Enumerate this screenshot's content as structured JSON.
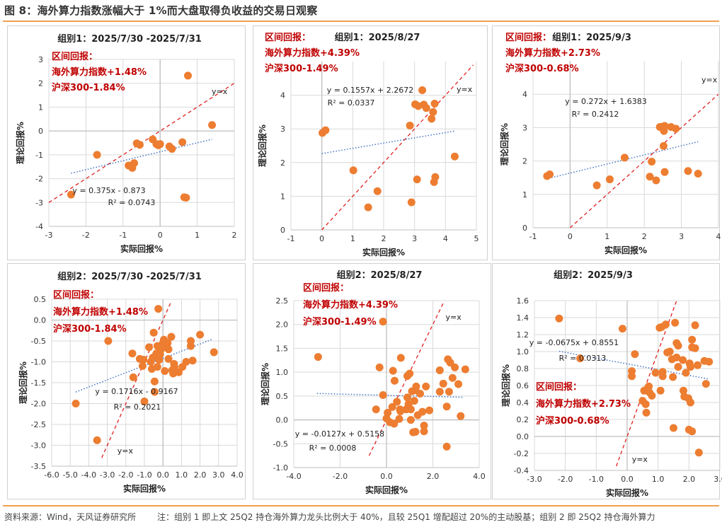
{
  "figure": {
    "title": "图 8：海外算力指数涨幅大于 1%而大盘取得负收益的交易日观察",
    "source": "资料来源：Wind，天风证券研究所",
    "note": "注：组别 1 即上文 25Q2 持仓海外算力龙头比例大于 40%，且较 25Q1 增配超过 20%的主动股基；组别 2 即 25Q2 持仓海外算力"
  },
  "colors": {
    "point": "#ed7d31",
    "diag": "#e02020",
    "trend": "#4472c4",
    "annot": "#c00000",
    "grid": "#d9d9d9",
    "axis": "#bfbfbf"
  },
  "chart_data": [
    {
      "type": "scatter",
      "title": "组别1：2025/7/30 -2025/7/31",
      "xlabel": "实际回报%",
      "ylabel": "理论回报%",
      "xlim": [
        -3,
        2
      ],
      "ylim": [
        -4,
        3
      ],
      "xticks": [
        -3,
        -2,
        -1,
        0,
        1,
        2
      ],
      "yticks": [
        -4,
        -3,
        -2,
        -1,
        0,
        1,
        2,
        3
      ],
      "tick_decimals": 0,
      "annotation": [
        "区间回报：",
        "海外算力指数+1.48%",
        "沪深300-1.84%"
      ],
      "trendline": {
        "equation": "y = 0.375x - 0.873",
        "r2": "R² = 0.0743",
        "slope": 0.375,
        "intercept": -0.873,
        "x_range": [
          -2.4,
          1.4
        ]
      },
      "diagonal_label": "y=x",
      "diagonal_range": [
        -3,
        2
      ],
      "points": [
        [
          -2.4,
          -2.67
        ],
        [
          -1.7,
          -1.0
        ],
        [
          -0.85,
          -1.45
        ],
        [
          -0.75,
          -1.55
        ],
        [
          -0.7,
          -1.35
        ],
        [
          -0.63,
          -0.52
        ],
        [
          -0.55,
          -0.58
        ],
        [
          -0.2,
          -0.35
        ],
        [
          -0.1,
          -0.55
        ],
        [
          -0.05,
          -0.6
        ],
        [
          0.0,
          -0.55
        ],
        [
          0.25,
          -0.65
        ],
        [
          0.32,
          -0.75
        ],
        [
          0.6,
          -0.47
        ],
        [
          0.65,
          -2.78
        ],
        [
          0.7,
          -2.8
        ],
        [
          0.75,
          2.32
        ],
        [
          1.4,
          0.25
        ]
      ]
    },
    {
      "type": "scatter",
      "title": "组别1：2025/8/27",
      "xlabel": "实际回报%",
      "ylabel": "理论回报%",
      "xlim": [
        -1,
        5
      ],
      "ylim": [
        0,
        5
      ],
      "xticks": [
        -1,
        0,
        1,
        2,
        3,
        4,
        5
      ],
      "yticks": [
        0,
        1,
        2,
        3,
        4
      ],
      "tick_decimals": 0,
      "annotation": [
        "区间回报：",
        "海外算力指数+4.39%",
        "沪深300-1.49%"
      ],
      "trendline": {
        "equation": "y = 0.1557x + 2.2672",
        "r2": "R² = 0.0337",
        "slope": 0.1557,
        "intercept": 2.2672,
        "x_range": [
          0.0,
          4.3
        ]
      },
      "diagonal_label": "y=x",
      "diagonal_range": [
        0,
        4.9
      ],
      "points": [
        [
          0.02,
          2.88
        ],
        [
          0.12,
          2.96
        ],
        [
          1.02,
          1.77
        ],
        [
          1.5,
          0.67
        ],
        [
          1.8,
          1.15
        ],
        [
          2.85,
          3.1
        ],
        [
          2.9,
          0.82
        ],
        [
          3.02,
          3.73
        ],
        [
          3.08,
          1.5
        ],
        [
          3.12,
          3.68
        ],
        [
          3.25,
          4.15
        ],
        [
          3.3,
          3.72
        ],
        [
          3.38,
          3.62
        ],
        [
          3.55,
          3.3
        ],
        [
          3.6,
          3.5
        ],
        [
          3.63,
          1.42
        ],
        [
          3.65,
          3.75
        ],
        [
          3.67,
          1.57
        ],
        [
          4.3,
          2.18
        ]
      ]
    },
    {
      "type": "scatter",
      "title": "组别1：2025/9/3",
      "xlabel": "实际回报%",
      "ylabel": "理论回报%",
      "xlim": [
        -1,
        4
      ],
      "ylim": [
        0,
        5
      ],
      "xticks": [
        -1,
        0,
        1,
        2,
        3,
        4
      ],
      "yticks": [
        0,
        1,
        2,
        3,
        4
      ],
      "tick_decimals": 0,
      "annotation": [
        "区间回报：",
        "海外算力指数+2.73%",
        "沪深300-0.68%"
      ],
      "trendline": {
        "equation": "y = 0.272x + 1.6383",
        "r2": "R² = 0.2412",
        "slope": 0.272,
        "intercept": 1.6383,
        "x_range": [
          -0.65,
          3.45
        ]
      },
      "diagonal_label": "y=x",
      "diagonal_range": [
        0,
        4
      ],
      "points": [
        [
          -0.62,
          1.55
        ],
        [
          -0.55,
          1.6
        ],
        [
          0.72,
          1.27
        ],
        [
          1.07,
          1.45
        ],
        [
          1.47,
          2.1
        ],
        [
          2.15,
          1.53
        ],
        [
          2.2,
          1.98
        ],
        [
          2.32,
          1.42
        ],
        [
          2.42,
          3.02
        ],
        [
          2.5,
          3.03
        ],
        [
          2.52,
          2.45
        ],
        [
          2.53,
          2.9
        ],
        [
          2.55,
          3.05
        ],
        [
          2.55,
          1.67
        ],
        [
          2.72,
          3.02
        ],
        [
          2.85,
          2.97
        ],
        [
          3.18,
          1.7
        ],
        [
          3.45,
          1.62
        ]
      ]
    },
    {
      "type": "scatter",
      "title": "组别2：2025/7/30 -2025/7/31",
      "xlabel": "实际回报%",
      "ylabel": "理论回报%",
      "xlim": [
        -6,
        4
      ],
      "ylim": [
        -3.5,
        0.5
      ],
      "xticks": [
        -6,
        -5,
        -4,
        -3,
        -2,
        -1,
        0,
        1,
        2,
        3,
        4
      ],
      "yticks": [
        -3.5,
        -3.0,
        -2.5,
        -2.0,
        -1.5,
        -1.0,
        -0.5,
        0.0,
        0.5
      ],
      "tick_decimals": 1,
      "annotation": [
        "区间回报：",
        "海外算力指数+1.48%",
        "沪深300-1.84%"
      ],
      "trendline": {
        "equation": "y = 0.1716x - 0.9167",
        "r2": "R² = 0.2021",
        "slope": 0.1716,
        "intercept": -0.9167,
        "x_range": [
          -4.7,
          2.7
        ]
      },
      "diagonal_label": "y=x",
      "diagonal_range": [
        -3.3,
        0.45
      ],
      "points": [
        [
          -4.7,
          -2.0
        ],
        [
          -3.55,
          -2.88
        ],
        [
          -2.95,
          -0.5
        ],
        [
          -1.65,
          -0.8
        ],
        [
          -1.6,
          -1.37
        ],
        [
          -1.25,
          -0.93
        ],
        [
          -1.1,
          -1.1
        ],
        [
          -1.05,
          -0.95
        ],
        [
          -1.0,
          -1.95
        ],
        [
          -0.75,
          -0.65
        ],
        [
          -0.65,
          -1.0
        ],
        [
          -0.6,
          -1.17
        ],
        [
          -0.55,
          -0.9
        ],
        [
          -0.5,
          -0.3
        ],
        [
          -0.45,
          -1.47
        ],
        [
          -0.45,
          -1.72
        ],
        [
          -0.4,
          -0.85
        ],
        [
          -0.35,
          -0.8
        ],
        [
          -0.3,
          -1.12
        ],
        [
          -0.3,
          -0.62
        ],
        [
          -0.25,
          0.27
        ],
        [
          -0.2,
          -0.95
        ],
        [
          -0.15,
          -0.82
        ],
        [
          -0.1,
          -0.7
        ],
        [
          0.0,
          -0.55
        ],
        [
          0.05,
          -0.47
        ],
        [
          0.1,
          -1.22
        ],
        [
          0.15,
          -0.6
        ],
        [
          0.25,
          -0.55
        ],
        [
          0.3,
          -0.93
        ],
        [
          0.3,
          -0.7
        ],
        [
          0.45,
          -0.4
        ],
        [
          0.5,
          -1.2
        ],
        [
          0.55,
          -1.28
        ],
        [
          0.6,
          -1.05
        ],
        [
          0.62,
          -1.12
        ],
        [
          0.85,
          -1.25
        ],
        [
          1.05,
          -1.12
        ],
        [
          1.25,
          -1.0
        ],
        [
          1.5,
          -0.5
        ],
        [
          1.5,
          -0.62
        ],
        [
          1.6,
          -0.97
        ],
        [
          2.0,
          -0.35
        ],
        [
          2.75,
          -0.77
        ]
      ]
    },
    {
      "type": "scatter",
      "title": "组别2：2025/8/27",
      "xlabel": "实际回报%",
      "ylabel": "理论回报%",
      "xlim": [
        -4,
        4
      ],
      "ylim": [
        -1.0,
        2.5
      ],
      "xticks": [
        -4,
        -2,
        0,
        2,
        4
      ],
      "yticks": [
        -1.0,
        -0.5,
        0.0,
        0.5,
        1.0,
        1.5,
        2.0,
        2.5
      ],
      "tick_decimals": 1,
      "annotation": [
        "区间回报：",
        "海外算力指数+4.39%",
        "沪深300-1.49%"
      ],
      "trendline": {
        "equation": "y = -0.0127x + 0.5158",
        "r2": "R² = 0.0008",
        "slope": -0.0127,
        "intercept": 0.5158,
        "x_range": [
          -3.0,
          3.3
        ]
      },
      "diagonal_label": "y=x",
      "diagonal_range": [
        -0.75,
        2.45
      ],
      "points": [
        [
          -2.95,
          1.32
        ],
        [
          -0.45,
          0.22
        ],
        [
          -0.3,
          1.1
        ],
        [
          -0.15,
          2.06
        ],
        [
          -0.15,
          0.52
        ],
        [
          0.0,
          0.03
        ],
        [
          0.05,
          0.15
        ],
        [
          0.15,
          -0.05
        ],
        [
          0.25,
          0.27
        ],
        [
          0.28,
          1.03
        ],
        [
          0.33,
          -0.08
        ],
        [
          0.35,
          0.82
        ],
        [
          0.45,
          0.38
        ],
        [
          0.55,
          0.02
        ],
        [
          0.58,
          0.22
        ],
        [
          0.6,
          0.18
        ],
        [
          0.62,
          1.3
        ],
        [
          0.85,
          0.22
        ],
        [
          0.9,
          0.47
        ],
        [
          0.9,
          0.92
        ],
        [
          0.95,
          0.33
        ],
        [
          1.0,
          0.97
        ],
        [
          1.05,
          0.0
        ],
        [
          1.05,
          0.22
        ],
        [
          1.1,
          0.6
        ],
        [
          1.15,
          -0.26
        ],
        [
          1.2,
          0.4
        ],
        [
          1.25,
          -0.25
        ],
        [
          1.25,
          0.62
        ],
        [
          1.28,
          0.7
        ],
        [
          1.35,
          0.1
        ],
        [
          1.45,
          0.55
        ],
        [
          1.55,
          0.17
        ],
        [
          1.62,
          -0.12
        ],
        [
          1.62,
          -0.24
        ],
        [
          1.7,
          0.7
        ],
        [
          1.85,
          0.2
        ],
        [
          2.3,
          0.59
        ],
        [
          2.3,
          1.04
        ],
        [
          2.45,
          0.76
        ],
        [
          2.6,
          0.28
        ],
        [
          2.6,
          -0.56
        ],
        [
          2.65,
          1.27
        ],
        [
          2.7,
          0.59
        ],
        [
          2.75,
          1.2
        ],
        [
          2.85,
          0.88
        ],
        [
          2.95,
          1.1
        ],
        [
          3.1,
          0.75
        ],
        [
          3.2,
          0.08
        ],
        [
          3.4,
          1.06
        ]
      ]
    },
    {
      "type": "scatter",
      "title": "组别2：2025/9/3",
      "xlabel": "实际回报%",
      "ylabel": "理论回报%",
      "xlim": [
        -3,
        3
      ],
      "ylim": [
        -0.4,
        1.6
      ],
      "xticks": [
        -3,
        -2,
        -1,
        0,
        1,
        2,
        3
      ],
      "yticks": [
        -0.4,
        -0.2,
        0.0,
        0.2,
        0.4,
        0.6,
        0.8,
        1.0,
        1.2,
        1.4,
        1.6
      ],
      "tick_decimals": 1,
      "annotation": [
        "区间回报：",
        "海外算力指数+2.73%",
        "沪深300-0.68%"
      ],
      "trendline": {
        "equation": "y = -0.0675x + 0.8551",
        "r2": "R² = 0.0313",
        "slope": -0.0675,
        "intercept": 0.8551,
        "x_range": [
          -2.2,
          2.65
        ]
      },
      "diagonal_label": "y=x",
      "diagonal_range": [
        -0.35,
        1.6
      ],
      "points": [
        [
          -2.2,
          1.39
        ],
        [
          -1.52,
          0.92
        ],
        [
          -0.15,
          1.27
        ],
        [
          0.15,
          0.77
        ],
        [
          0.15,
          0.71
        ],
        [
          0.25,
          0.97
        ],
        [
          0.5,
          0.42
        ],
        [
          0.55,
          0.54
        ],
        [
          0.6,
          0.38
        ],
        [
          0.62,
          0.28
        ],
        [
          0.65,
          0.56
        ],
        [
          0.7,
          0.59
        ],
        [
          0.72,
          0.52
        ],
        [
          0.8,
          0.48
        ],
        [
          0.92,
          0.75
        ],
        [
          1.05,
          1.28
        ],
        [
          1.08,
          0.54
        ],
        [
          1.12,
          1.29
        ],
        [
          1.15,
          0.71
        ],
        [
          1.15,
          0.76
        ],
        [
          1.25,
          1.32
        ],
        [
          1.3,
          0.99
        ],
        [
          1.38,
          1.0
        ],
        [
          1.45,
          0.91
        ],
        [
          1.48,
          0.7
        ],
        [
          1.5,
          0.1
        ],
        [
          1.55,
          1.34
        ],
        [
          1.6,
          0.93
        ],
        [
          1.6,
          1.1
        ],
        [
          1.65,
          1.07
        ],
        [
          1.65,
          0.82
        ],
        [
          1.8,
          0.9
        ],
        [
          1.82,
          0.54
        ],
        [
          1.85,
          0.47
        ],
        [
          1.9,
          0.75
        ],
        [
          1.98,
          0.45
        ],
        [
          2.0,
          0.08
        ],
        [
          2.02,
          0.86
        ],
        [
          2.05,
          0.82
        ],
        [
          2.05,
          0.4
        ],
        [
          2.1,
          0.06
        ],
        [
          2.1,
          1.14
        ],
        [
          2.1,
          1.05
        ],
        [
          2.2,
          1.04
        ],
        [
          2.2,
          1.31
        ],
        [
          2.28,
          0.84
        ],
        [
          2.32,
          -0.19
        ],
        [
          2.5,
          0.89
        ],
        [
          2.55,
          0.62
        ],
        [
          2.65,
          0.88
        ]
      ]
    }
  ]
}
